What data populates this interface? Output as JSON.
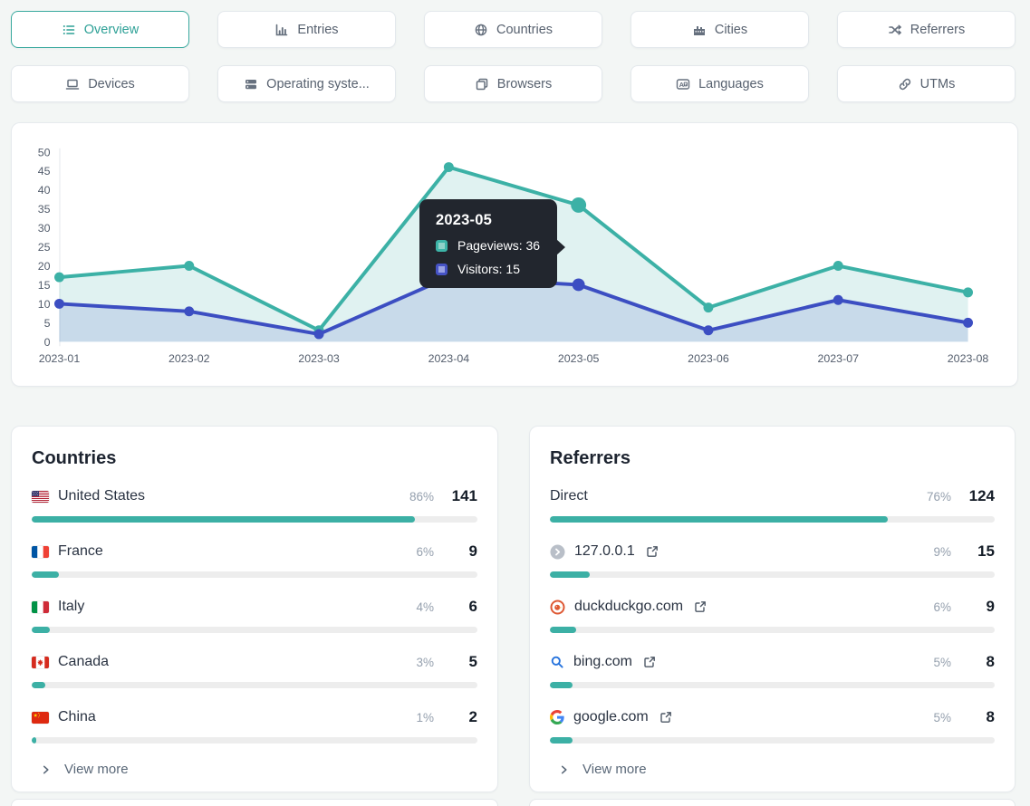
{
  "tabs": {
    "active_color": "#2da096",
    "items": [
      {
        "label": "Overview",
        "icon": "list-icon",
        "active": true
      },
      {
        "label": "Entries",
        "icon": "bar-chart-icon",
        "active": false
      },
      {
        "label": "Countries",
        "icon": "globe-icon",
        "active": false
      },
      {
        "label": "Cities",
        "icon": "city-icon",
        "active": false
      },
      {
        "label": "Referrers",
        "icon": "shuffle-icon",
        "active": false
      },
      {
        "label": "Devices",
        "icon": "laptop-icon",
        "active": false
      },
      {
        "label": "Operating syste...",
        "icon": "server-icon",
        "active": false
      },
      {
        "label": "Browsers",
        "icon": "browser-windows-icon",
        "active": false
      },
      {
        "label": "Languages",
        "icon": "translate-icon",
        "active": false
      },
      {
        "label": "UTMs",
        "icon": "link-icon",
        "active": false
      }
    ]
  },
  "chart_data": {
    "type": "area",
    "x": [
      "2023-01",
      "2023-02",
      "2023-03",
      "2023-04",
      "2023-05",
      "2023-06",
      "2023-07",
      "2023-08"
    ],
    "series": [
      {
        "name": "Pageviews",
        "color": "#3cb1a6",
        "values": [
          17,
          20,
          3,
          46,
          36,
          9,
          20,
          13
        ]
      },
      {
        "name": "Visitors",
        "color": "#3c4ec2",
        "values": [
          10,
          8,
          2,
          17,
          15,
          3,
          11,
          5
        ]
      }
    ],
    "ylim": [
      0,
      50
    ],
    "ytick_step": 5,
    "grid": false,
    "legend_position": "tooltip-only",
    "highlight_index": 4,
    "tooltip": {
      "title": "2023-05",
      "items": [
        {
          "label": "Pageviews",
          "value": 36
        },
        {
          "label": "Visitors",
          "value": 15
        }
      ]
    }
  },
  "countries": {
    "title": "Countries",
    "view_more": "View more",
    "rows": [
      {
        "name": "United States",
        "flag": "flag-us-icon",
        "percent": "86%",
        "count": "141",
        "bar": 86
      },
      {
        "name": "France",
        "flag": "flag-fr-icon",
        "percent": "6%",
        "count": "9",
        "bar": 6
      },
      {
        "name": "Italy",
        "flag": "flag-it-icon",
        "percent": "4%",
        "count": "6",
        "bar": 4
      },
      {
        "name": "Canada",
        "flag": "flag-ca-icon",
        "percent": "3%",
        "count": "5",
        "bar": 3
      },
      {
        "name": "China",
        "flag": "flag-cn-icon",
        "percent": "1%",
        "count": "2",
        "bar": 1
      }
    ]
  },
  "referrers": {
    "title": "Referrers",
    "view_more": "View more",
    "rows": [
      {
        "name": "Direct",
        "icon": null,
        "external_link": false,
        "percent": "76%",
        "count": "124",
        "bar": 76
      },
      {
        "name": "127.0.0.1",
        "icon": "default-favicon",
        "external_link": true,
        "percent": "9%",
        "count": "15",
        "bar": 9
      },
      {
        "name": "duckduckgo.com",
        "icon": "duckduckgo-icon",
        "external_link": true,
        "percent": "6%",
        "count": "9",
        "bar": 6
      },
      {
        "name": "bing.com",
        "icon": "bing-search-icon",
        "external_link": true,
        "percent": "5%",
        "count": "8",
        "bar": 5
      },
      {
        "name": "google.com",
        "icon": "google-icon",
        "external_link": true,
        "percent": "5%",
        "count": "8",
        "bar": 5
      }
    ]
  },
  "colors": {
    "page_background": "#f3f6f5",
    "card_background": "#ffffff",
    "accent_teal": "#3cb0a5",
    "accent_indigo": "#3c4ec2",
    "tooltip_background": "#22262e",
    "bar_track": "#ededed"
  }
}
